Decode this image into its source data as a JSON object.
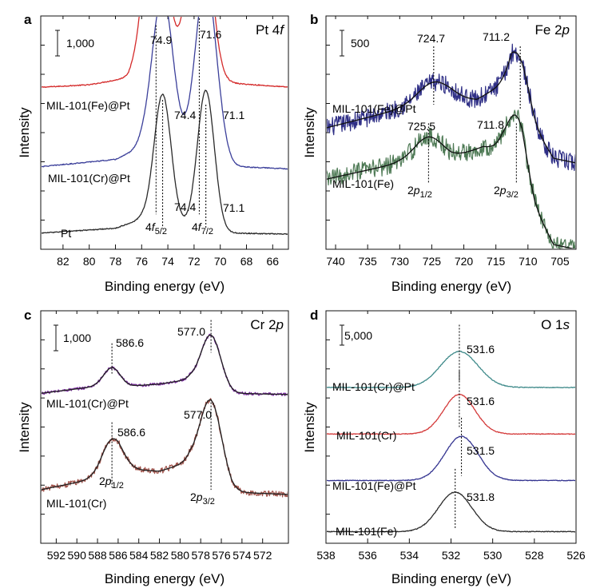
{
  "chart_data": [
    {
      "type": "line",
      "panel": "a",
      "title": "Pt 4f",
      "xlabel": "Binding energy (eV)",
      "ylabel": "Intensity",
      "xlim": [
        83.7,
        64.8
      ],
      "x_ticks": [
        82,
        80,
        78,
        76,
        74,
        72,
        70,
        68,
        66
      ],
      "scale_bar": "1,000",
      "series": [
        {
          "name": "MIL-101(Fe)@Pt",
          "color": "#d42a2a",
          "offset": 0.695,
          "noise": 0.002,
          "base": [
            [
              83.5,
              0.0
            ],
            [
              80,
              0.01
            ],
            [
              77,
              0.04
            ],
            [
              76,
              0.1
            ],
            [
              70,
              0.02
            ],
            [
              64.8,
              0.0
            ]
          ],
          "peaks": [
            [
              74.9,
              0.78,
              0.8
            ],
            [
              71.6,
              0.88,
              0.8
            ]
          ]
        },
        {
          "name": "MIL-101(Cr)@Pt",
          "color": "#3b3f9a",
          "offset": 0.355,
          "noise": 0.002,
          "base": [
            [
              83.5,
              0.0
            ],
            [
              78,
              0.03
            ],
            [
              76,
              0.08
            ],
            [
              70,
              0.03
            ],
            [
              69,
              0.0
            ],
            [
              64.8,
              -0.01
            ]
          ],
          "peaks": [
            [
              74.4,
              0.67,
              0.8
            ],
            [
              71.1,
              0.76,
              0.8
            ]
          ]
        },
        {
          "name": "Pt",
          "color": "#2a2a2a",
          "offset": 0.07,
          "noise": 0.002,
          "base": [
            [
              83.5,
              0.0
            ],
            [
              78,
              0.02
            ],
            [
              76,
              0.06
            ],
            [
              70,
              0.0
            ],
            [
              64.8,
              -0.005
            ]
          ],
          "peaks": [
            [
              74.4,
              0.55,
              0.65
            ],
            [
              71.1,
              0.6,
              0.65
            ]
          ]
        }
      ],
      "peak_labels": [
        {
          "text": "74.9",
          "x": 74.9
        },
        {
          "text": "71.6",
          "x": 71.6
        },
        {
          "text": "74.4",
          "x": 74.4
        },
        {
          "text": "71.1",
          "x": 71.1
        },
        {
          "text": "74.4",
          "x": 74.4
        },
        {
          "text": "71.1",
          "x": 71.1
        }
      ],
      "component_labels": [
        {
          "text": "4f",
          "sub": "5/2"
        },
        {
          "text": "4f",
          "sub": "7/2"
        }
      ]
    },
    {
      "type": "line",
      "panel": "b",
      "title": "Fe 2p",
      "xlabel": "Binding energy (eV)",
      "ylabel": "Intensity",
      "xlim": [
        741.5,
        702.5
      ],
      "x_ticks": [
        740,
        735,
        730,
        725,
        720,
        715,
        710,
        705
      ],
      "scale_bar": "500",
      "series": [
        {
          "name": "MIL-101(Fe)@Pt",
          "color": "#2f2f86",
          "offset": 0.52,
          "noise": 0.04,
          "base": [
            [
              741.5,
              0.0
            ],
            [
              730,
              0.08
            ],
            [
              722,
              0.12
            ],
            [
              718,
              0.12
            ],
            [
              715,
              0.17
            ],
            [
              712.5,
              0.22
            ],
            [
              709,
              0.0
            ],
            [
              706,
              -0.13
            ],
            [
              702.5,
              -0.15
            ]
          ],
          "peaks": [
            [
              724.7,
              0.09,
              2.5
            ],
            [
              711.2,
              0.16,
              1.4
            ]
          ]
        },
        {
          "name": "MIL-101(Fe)",
          "color": "#4e7a55",
          "offset": 0.3,
          "noise": 0.04,
          "base": [
            [
              741.5,
              0.0
            ],
            [
              730,
              0.07
            ],
            [
              722,
              0.09
            ],
            [
              717,
              0.14
            ],
            [
              714,
              0.13
            ],
            [
              711,
              0.05
            ],
            [
              709,
              -0.12
            ],
            [
              706,
              -0.28
            ],
            [
              702.5,
              -0.3
            ]
          ],
          "peaks": [
            [
              725.5,
              0.1,
              2.2
            ],
            [
              711.8,
              0.2,
              1.5
            ]
          ]
        }
      ],
      "fit_line_color": "#111111",
      "peak_labels": [
        {
          "text": "724.7",
          "x": 724.7
        },
        {
          "text": "711.2",
          "x": 711.2
        },
        {
          "text": "725.5",
          "x": 725.5
        },
        {
          "text": "711.8",
          "x": 711.8
        }
      ],
      "component_labels": [
        {
          "text": "2p",
          "sub": "1/2"
        },
        {
          "text": "2p",
          "sub": "3/2"
        }
      ]
    },
    {
      "type": "line",
      "panel": "c",
      "title": "Cr 2p",
      "xlabel": "Binding energy (eV)",
      "ylabel": "Intensity",
      "xlim": [
        593.5,
        569.5
      ],
      "x_ticks": [
        592,
        590,
        588,
        586,
        584,
        582,
        580,
        578,
        576,
        574,
        572
      ],
      "scale_bar": "1,000",
      "series": [
        {
          "name": "MIL-101(Cr)@Pt",
          "color": "#7a2aa0",
          "offset": 0.645,
          "noise": 0.006,
          "base": [
            [
              593.5,
              0.0
            ],
            [
              588,
              0.03
            ],
            [
              585,
              0.03
            ],
            [
              582,
              0.04
            ],
            [
              579,
              0.06
            ],
            [
              575,
              0.0
            ],
            [
              569.5,
              -0.005
            ]
          ],
          "peaks": [
            [
              586.6,
              0.08,
              0.8
            ],
            [
              577.0,
              0.22,
              0.95
            ]
          ]
        },
        {
          "name": "MIL-101(Cr)",
          "color": "#a0524a",
          "offset": 0.23,
          "noise": 0.012,
          "base": [
            [
              593.5,
              0.0
            ],
            [
              588,
              0.05
            ],
            [
              586,
              0.09
            ],
            [
              582,
              0.08
            ],
            [
              579,
              0.12
            ],
            [
              575,
              -0.01
            ],
            [
              569.5,
              -0.02
            ]
          ],
          "peaks": [
            [
              586.6,
              0.14,
              1.0
            ],
            [
              577.0,
              0.33,
              1.05
            ]
          ]
        }
      ],
      "fit_line_color": "#222222",
      "peak_labels": [
        {
          "text": "586.6",
          "x": 586.6
        },
        {
          "text": "577.0",
          "x": 577.0
        },
        {
          "text": "586.6",
          "x": 586.6
        },
        {
          "text": "577.0",
          "x": 577.0
        }
      ],
      "component_labels": [
        {
          "text": "2p",
          "sub": "1/2"
        },
        {
          "text": "2p",
          "sub": "3/2"
        }
      ]
    },
    {
      "type": "line",
      "panel": "d",
      "title": "O 1s",
      "xlabel": "Binding energy (eV)",
      "ylabel": "Intensity",
      "xlim": [
        538,
        526
      ],
      "x_ticks": [
        538,
        536,
        534,
        532,
        530,
        528,
        526
      ],
      "scale_bar": "5,000",
      "series": [
        {
          "name": "MIL-101(Cr)@Pt",
          "color": "#3f8a8a",
          "offset": 0.67,
          "noise": 0.0015,
          "base": [
            [
              538,
              0.0
            ],
            [
              526,
              0.0
            ]
          ],
          "peaks": [
            [
              531.6,
              0.155,
              0.9
            ]
          ]
        },
        {
          "name": "MIL-101(Cr)",
          "color": "#d43a3a",
          "offset": 0.47,
          "noise": 0.0015,
          "base": [
            [
              538,
              0.0
            ],
            [
              526,
              0.0
            ]
          ],
          "peaks": [
            [
              531.6,
              0.17,
              0.75
            ]
          ]
        },
        {
          "name": "MIL-101(Fe)@Pt",
          "color": "#343490",
          "offset": 0.27,
          "noise": 0.0015,
          "base": [
            [
              538,
              0.0
            ],
            [
              526,
              0.0
            ]
          ],
          "peaks": [
            [
              531.5,
              0.19,
              0.8
            ]
          ]
        },
        {
          "name": "MIL-101(Fe)",
          "color": "#2a2a2a",
          "offset": 0.05,
          "noise": 0.0015,
          "base": [
            [
              538,
              0.0
            ],
            [
              526,
              0.0
            ]
          ],
          "peaks": [
            [
              531.8,
              0.17,
              0.8
            ]
          ]
        }
      ],
      "peak_labels": [
        {
          "text": "531.6",
          "x": 531.6
        },
        {
          "text": "531.6",
          "x": 531.6
        },
        {
          "text": "531.5",
          "x": 531.5
        },
        {
          "text": "531.8",
          "x": 531.8
        }
      ],
      "component_labels": []
    }
  ]
}
